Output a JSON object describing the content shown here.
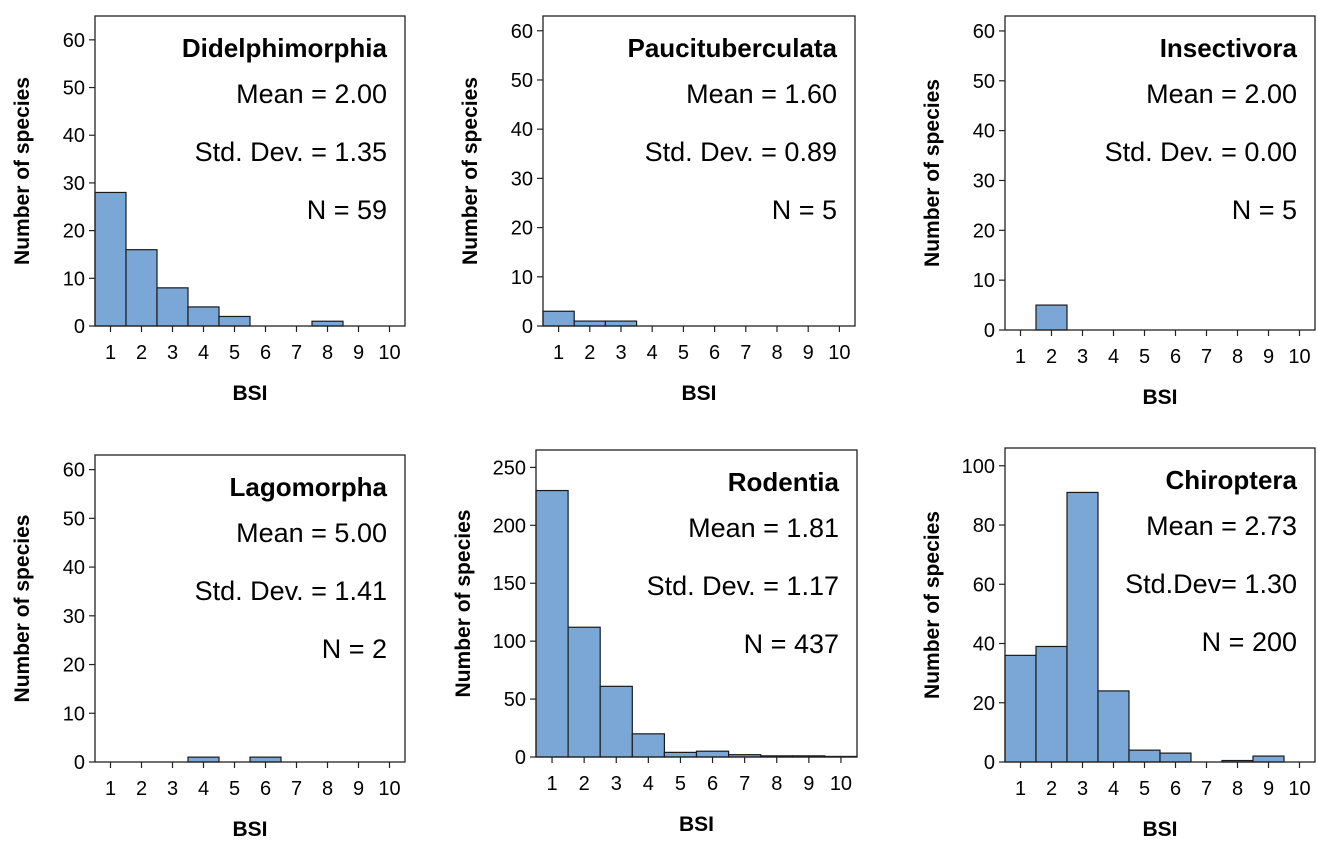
{
  "style": {
    "bar_color": "#7ba7d6",
    "bar_stroke": "#1a1a1a"
  },
  "chart_data": [
    {
      "type": "bar",
      "title": "Didelphimorphia",
      "xlabel": "BSI",
      "ylabel": "Number of species",
      "stats": [
        "Mean = 2.00",
        "Std. Dev. = 1.35",
        "N = 59"
      ],
      "ylim": [
        0,
        65
      ],
      "yticks": [
        0,
        10,
        20,
        30,
        40,
        50,
        60
      ],
      "xlim": [
        0.5,
        10.5
      ],
      "xticks": [
        1,
        2,
        3,
        4,
        5,
        6,
        7,
        8,
        9,
        10
      ],
      "bins": [
        {
          "from": 0.5,
          "to": 1.5,
          "value": 28
        },
        {
          "from": 1.5,
          "to": 2.5,
          "value": 16
        },
        {
          "from": 2.5,
          "to": 3.5,
          "value": 8
        },
        {
          "from": 3.5,
          "to": 4.5,
          "value": 4
        },
        {
          "from": 4.5,
          "to": 5.5,
          "value": 2
        },
        {
          "from": 7.5,
          "to": 8.5,
          "value": 1
        }
      ]
    },
    {
      "type": "bar",
      "title": "Paucituberculata",
      "xlabel": "BSI",
      "ylabel": "Number of species",
      "stats": [
        "Mean = 1.60",
        "Std. Dev. = 0.89",
        "N = 5"
      ],
      "ylim": [
        0,
        63
      ],
      "yticks": [
        0,
        10,
        20,
        30,
        40,
        50,
        60
      ],
      "xlim": [
        0.5,
        10.5
      ],
      "xticks": [
        1,
        2,
        3,
        4,
        5,
        6,
        7,
        8,
        9,
        10
      ],
      "bins": [
        {
          "from": 0.5,
          "to": 1.5,
          "value": 3
        },
        {
          "from": 1.5,
          "to": 2.5,
          "value": 1
        },
        {
          "from": 2.5,
          "to": 3.5,
          "value": 1
        }
      ]
    },
    {
      "type": "bar",
      "title": "Insectivora",
      "xlabel": "BSI",
      "ylabel": "Number of species",
      "stats": [
        "Mean = 2.00",
        "Std. Dev. = 0.00",
        "N = 5"
      ],
      "ylim": [
        0,
        63
      ],
      "yticks": [
        0,
        10,
        20,
        30,
        40,
        50,
        60
      ],
      "xlim": [
        0.5,
        10.5
      ],
      "xticks": [
        1,
        2,
        3,
        4,
        5,
        6,
        7,
        8,
        9,
        10
      ],
      "bins": [
        {
          "from": 1.5,
          "to": 2.5,
          "value": 5
        }
      ]
    },
    {
      "type": "bar",
      "title": "Lagomorpha",
      "xlabel": "BSI",
      "ylabel": "Number of species",
      "stats": [
        "Mean = 5.00",
        "Std. Dev. = 1.41",
        "N = 2"
      ],
      "ylim": [
        0,
        63
      ],
      "yticks": [
        0,
        10,
        20,
        30,
        40,
        50,
        60
      ],
      "xlim": [
        0.5,
        10.5
      ],
      "xticks": [
        1,
        2,
        3,
        4,
        5,
        6,
        7,
        8,
        9,
        10
      ],
      "bins": [
        {
          "from": 3.5,
          "to": 4.5,
          "value": 1
        },
        {
          "from": 5.5,
          "to": 6.5,
          "value": 1
        }
      ]
    },
    {
      "type": "bar",
      "title": "Rodentia",
      "xlabel": "BSI",
      "ylabel": "Number of species",
      "stats": [
        "Mean = 1.81",
        "Std. Dev. = 1.17",
        "N = 437"
      ],
      "ylim": [
        0,
        265
      ],
      "yticks": [
        0,
        50,
        100,
        150,
        200,
        250
      ],
      "xlim": [
        0.5,
        10.5
      ],
      "xticks": [
        1,
        2,
        3,
        4,
        5,
        6,
        7,
        8,
        9,
        10
      ],
      "bins": [
        {
          "from": 0.5,
          "to": 1.5,
          "value": 230
        },
        {
          "from": 1.5,
          "to": 2.5,
          "value": 112
        },
        {
          "from": 2.5,
          "to": 3.5,
          "value": 61
        },
        {
          "from": 3.5,
          "to": 4.5,
          "value": 20
        },
        {
          "from": 4.5,
          "to": 5.5,
          "value": 4
        },
        {
          "from": 5.5,
          "to": 6.5,
          "value": 5
        },
        {
          "from": 6.5,
          "to": 7.5,
          "value": 2
        },
        {
          "from": 7.5,
          "to": 8.5,
          "value": 1
        },
        {
          "from": 8.5,
          "to": 9.5,
          "value": 1
        },
        {
          "from": 9.5,
          "to": 10.5,
          "value": 0.5
        }
      ]
    },
    {
      "type": "bar",
      "title": "Chiroptera",
      "xlabel": "BSI",
      "ylabel": "Number of species",
      "stats": [
        "Mean = 2.73",
        "Std.Dev= 1.30",
        "N = 200"
      ],
      "ylim": [
        0,
        106
      ],
      "yticks": [
        0,
        20,
        40,
        60,
        80,
        100
      ],
      "xlim": [
        0.5,
        10.5
      ],
      "xticks": [
        1,
        2,
        3,
        4,
        5,
        6,
        7,
        8,
        9,
        10
      ],
      "bins": [
        {
          "from": 0.5,
          "to": 1.5,
          "value": 36
        },
        {
          "from": 1.5,
          "to": 2.5,
          "value": 39
        },
        {
          "from": 2.5,
          "to": 3.5,
          "value": 91
        },
        {
          "from": 3.5,
          "to": 4.5,
          "value": 24
        },
        {
          "from": 4.5,
          "to": 5.5,
          "value": 4
        },
        {
          "from": 5.5,
          "to": 6.5,
          "value": 3
        },
        {
          "from": 7.5,
          "to": 8.5,
          "value": 0.5
        },
        {
          "from": 8.5,
          "to": 9.5,
          "value": 2
        }
      ]
    }
  ]
}
